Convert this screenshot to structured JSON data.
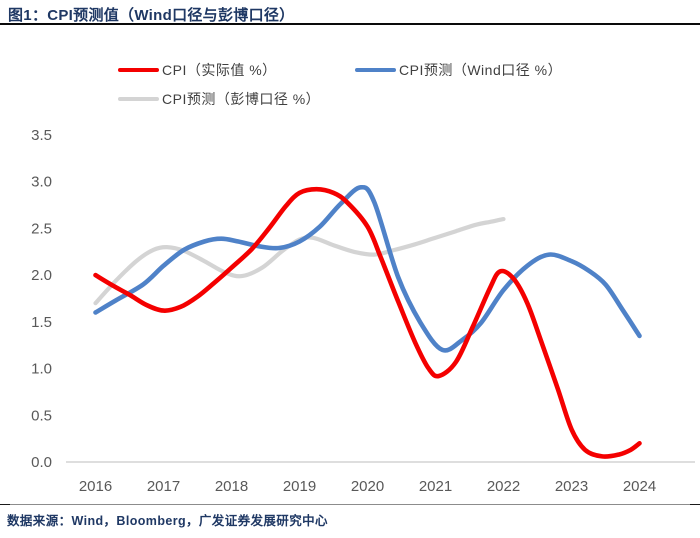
{
  "page": {
    "title": "图1：CPI预测值（Wind口径与彭博口径）",
    "source_note": "数据来源：Wind，Bloomberg，广发证券发展研究中心"
  },
  "colors": {
    "title_navy": "#1f3864",
    "axis_text": "#595959",
    "axis_line": "#c9c9c9",
    "legend_text": "#3f3f3f",
    "series_actual": "#f40000",
    "series_wind": "#4f82c8",
    "series_bloomberg": "#d4d4d4"
  },
  "legend": {
    "rows": [
      [
        {
          "key": "actual",
          "label": "CPI（实际值 %）"
        },
        {
          "key": "wind",
          "label": "CPI预测（Wind口径 %）"
        }
      ],
      [
        {
          "key": "bloomberg",
          "label": "CPI预测（彭博口径 %）"
        }
      ]
    ]
  },
  "chart_data": {
    "type": "line",
    "title": "CPI预测值（Wind口径与彭博口径）",
    "xlabel": "",
    "ylabel": "",
    "xlim": [
      2016,
      2024
    ],
    "ylim": [
      0.0,
      3.5
    ],
    "y_step": 0.5,
    "grid": false,
    "legend_position": "top",
    "x_ticks": [
      "2016",
      "2017",
      "2018",
      "2019",
      "2020",
      "2021",
      "2022",
      "2023",
      "2024"
    ],
    "y_ticks": [
      "0.0",
      "0.5",
      "1.0",
      "1.5",
      "2.0",
      "2.5",
      "3.0",
      "3.5"
    ],
    "series": [
      {
        "key": "actual",
        "name": "CPI（实际值 %）",
        "color": "#f40000",
        "points": [
          [
            2016.0,
            2.0
          ],
          [
            2016.25,
            1.89
          ],
          [
            2016.5,
            1.79
          ],
          [
            2016.75,
            1.68
          ],
          [
            2017.0,
            1.62
          ],
          [
            2017.25,
            1.66
          ],
          [
            2017.5,
            1.77
          ],
          [
            2017.75,
            1.92
          ],
          [
            2018.0,
            2.08
          ],
          [
            2018.3,
            2.28
          ],
          [
            2018.55,
            2.5
          ],
          [
            2018.8,
            2.74
          ],
          [
            2019.0,
            2.88
          ],
          [
            2019.25,
            2.92
          ],
          [
            2019.5,
            2.88
          ],
          [
            2019.7,
            2.78
          ],
          [
            2020.0,
            2.52
          ],
          [
            2020.2,
            2.18
          ],
          [
            2020.45,
            1.72
          ],
          [
            2020.7,
            1.28
          ],
          [
            2020.9,
            1.0
          ],
          [
            2021.05,
            0.92
          ],
          [
            2021.3,
            1.07
          ],
          [
            2021.55,
            1.45
          ],
          [
            2021.8,
            1.86
          ],
          [
            2021.95,
            2.04
          ],
          [
            2022.15,
            1.96
          ],
          [
            2022.35,
            1.7
          ],
          [
            2022.55,
            1.3
          ],
          [
            2022.8,
            0.78
          ],
          [
            2023.0,
            0.35
          ],
          [
            2023.2,
            0.13
          ],
          [
            2023.45,
            0.06
          ],
          [
            2023.7,
            0.08
          ],
          [
            2023.87,
            0.13
          ],
          [
            2024.0,
            0.2
          ]
        ]
      },
      {
        "key": "wind",
        "name": "CPI预测（Wind口径 %）",
        "color": "#4f82c8",
        "points": [
          [
            2016.0,
            1.6
          ],
          [
            2016.3,
            1.73
          ],
          [
            2016.7,
            1.9
          ],
          [
            2017.0,
            2.1
          ],
          [
            2017.3,
            2.27
          ],
          [
            2017.6,
            2.36
          ],
          [
            2017.85,
            2.39
          ],
          [
            2018.1,
            2.36
          ],
          [
            2018.4,
            2.31
          ],
          [
            2018.7,
            2.29
          ],
          [
            2019.0,
            2.36
          ],
          [
            2019.3,
            2.52
          ],
          [
            2019.6,
            2.76
          ],
          [
            2019.9,
            2.94
          ],
          [
            2020.1,
            2.78
          ],
          [
            2020.45,
            1.98
          ],
          [
            2020.78,
            1.49
          ],
          [
            2021.1,
            1.2
          ],
          [
            2021.4,
            1.31
          ],
          [
            2021.67,
            1.49
          ],
          [
            2022.0,
            1.84
          ],
          [
            2022.35,
            2.1
          ],
          [
            2022.67,
            2.22
          ],
          [
            2023.0,
            2.15
          ],
          [
            2023.25,
            2.05
          ],
          [
            2023.5,
            1.9
          ],
          [
            2023.75,
            1.63
          ],
          [
            2024.0,
            1.35
          ]
        ]
      },
      {
        "key": "bloomberg",
        "name": "CPI预测（彭博口径 %）",
        "color": "#d4d4d4",
        "points": [
          [
            2016.0,
            1.7
          ],
          [
            2016.3,
            1.94
          ],
          [
            2016.6,
            2.15
          ],
          [
            2016.85,
            2.27
          ],
          [
            2017.05,
            2.3
          ],
          [
            2017.3,
            2.26
          ],
          [
            2017.6,
            2.15
          ],
          [
            2017.9,
            2.03
          ],
          [
            2018.15,
            1.99
          ],
          [
            2018.45,
            2.08
          ],
          [
            2018.75,
            2.26
          ],
          [
            2019.0,
            2.38
          ],
          [
            2019.2,
            2.4
          ],
          [
            2019.5,
            2.32
          ],
          [
            2019.8,
            2.25
          ],
          [
            2020.1,
            2.22
          ],
          [
            2020.4,
            2.27
          ],
          [
            2020.7,
            2.33
          ],
          [
            2021.0,
            2.4
          ],
          [
            2021.3,
            2.47
          ],
          [
            2021.6,
            2.54
          ],
          [
            2021.8,
            2.57
          ],
          [
            2022.0,
            2.6
          ]
        ]
      }
    ]
  }
}
